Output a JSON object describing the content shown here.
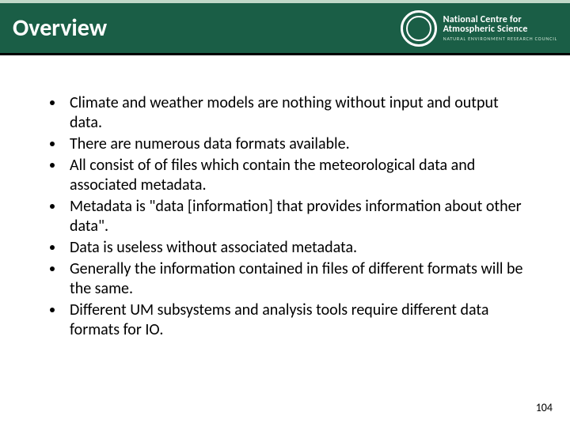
{
  "header": {
    "title": "Overview",
    "logo": {
      "line1": "National Centre for",
      "line2": "Atmospheric Science",
      "subline": "NATURAL ENVIRONMENT RESEARCH COUNCIL"
    },
    "colors": {
      "band": "#1a5e46",
      "top_border": "#c0d8c8",
      "bottom_border": "#000000",
      "title_text": "#ffffff"
    }
  },
  "bullets": [
    "Climate and weather models are nothing without input and output data.",
    "There are numerous data formats available.",
    "All consist of of files which contain the meteorological data and associated metadata.",
    "Metadata is \"data [information] that provides information about other data\".",
    "Data is useless without associated metadata.",
    "Generally the information contained in files of different formats will be the same.",
    "Different UM subsystems and analysis tools require different data formats for IO."
  ],
  "page_number": "104",
  "typography": {
    "title_fontsize": 30,
    "bullet_fontsize": 20,
    "pagenum_fontsize": 14
  }
}
